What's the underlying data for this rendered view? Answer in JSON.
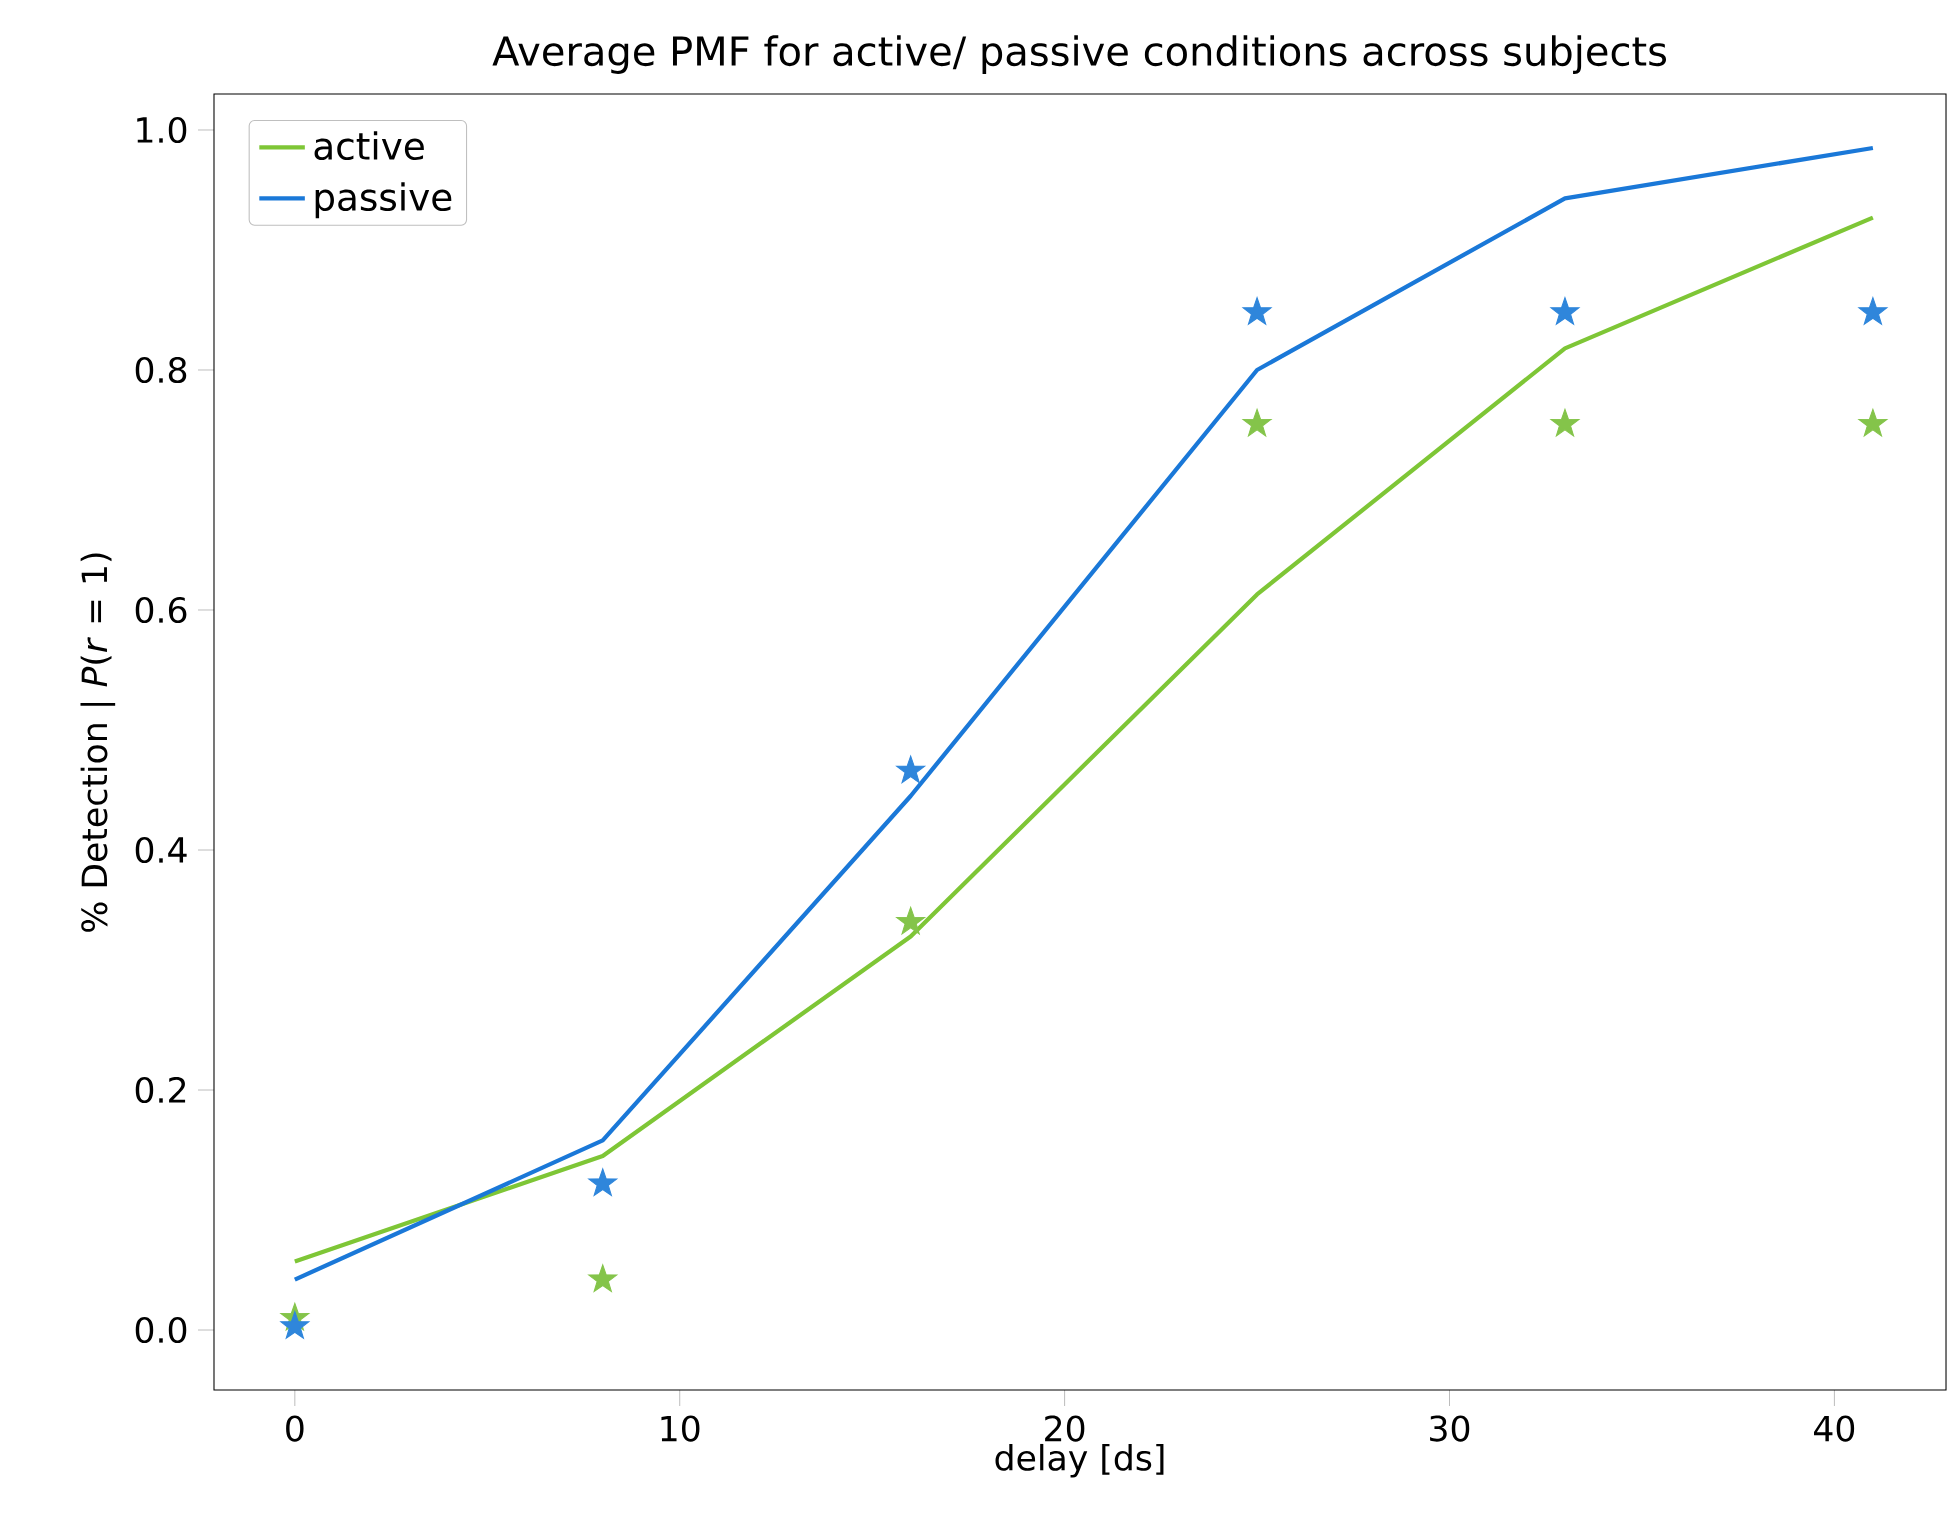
{
  "chart_data": {
    "type": "line",
    "title": "Average PMF for active/ passive conditions across subjects",
    "xlabel": "delay [ds]",
    "ylabel": "% Detection | *P*(*r* = 1)",
    "x": [
      0,
      8,
      16,
      25,
      33,
      41
    ],
    "series": [
      {
        "name": "active",
        "color": "#7ec636",
        "values": [
          0.057,
          0.145,
          0.328,
          0.613,
          0.818,
          0.927
        ]
      },
      {
        "name": "passive",
        "color": "#1a78d8",
        "values": [
          0.042,
          0.158,
          0.445,
          0.8,
          0.943,
          0.985
        ]
      },
      {
        "type": "scatter",
        "marker": "star",
        "color": "#84c44a",
        "values": [
          0.01,
          0.042,
          0.34,
          0.755,
          0.755,
          0.755
        ]
      },
      {
        "type": "scatter",
        "marker": "star",
        "color": "#2f86db",
        "values": [
          0.003,
          0.122,
          0.466,
          0.848,
          0.848,
          0.848
        ]
      }
    ],
    "xlim": [
      -2.1,
      42.9
    ],
    "ylim": [
      -0.05,
      1.03
    ],
    "xticks": [
      0,
      10,
      20,
      30,
      40
    ],
    "yticks": [
      {
        "value": 0,
        "label": "0.0"
      },
      {
        "value": 0.2,
        "label": "0.2"
      },
      {
        "value": 0.4,
        "label": "0.4"
      },
      {
        "value": 0.6,
        "label": "0.6"
      },
      {
        "value": 0.8,
        "label": "0.8"
      },
      {
        "value": 1,
        "label": "1.0"
      }
    ],
    "grid": false,
    "legend": "top left"
  }
}
